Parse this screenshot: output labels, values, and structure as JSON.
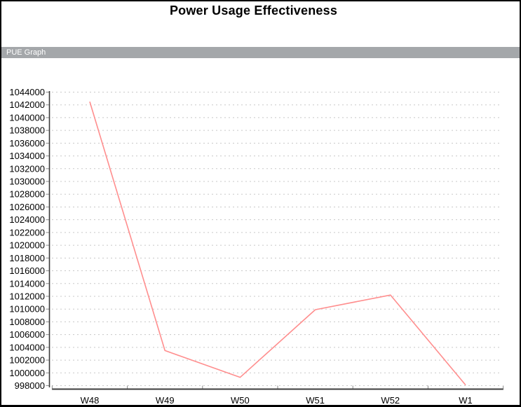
{
  "page": {
    "title": "Power Usage Effectiveness",
    "panel_label": "PUE Graph"
  },
  "colors": {
    "panel_bg": "#a4a7aa",
    "panel_text": "#ffffff",
    "line": "#ff8e8e",
    "grid": "#c8c8c8",
    "axis": "#3c3c3c",
    "tick": "#8a8a8a",
    "label": "#000000"
  },
  "chart_data": {
    "type": "line",
    "title": "Power Usage Effectiveness",
    "panel_label": "PUE Graph",
    "categories": [
      "W48",
      "W49",
      "W50",
      "W51",
      "W52",
      "W1"
    ],
    "series": [
      {
        "name": "PUE",
        "values": [
          1042500,
          1003500,
          999300,
          1009900,
          1012200,
          998100
        ]
      }
    ],
    "xlabel": "",
    "ylabel": "",
    "ylim": [
      998000,
      1044000
    ],
    "ytick_step": 2000,
    "grid": "horizontal-dotted",
    "legend_position": "none"
  }
}
